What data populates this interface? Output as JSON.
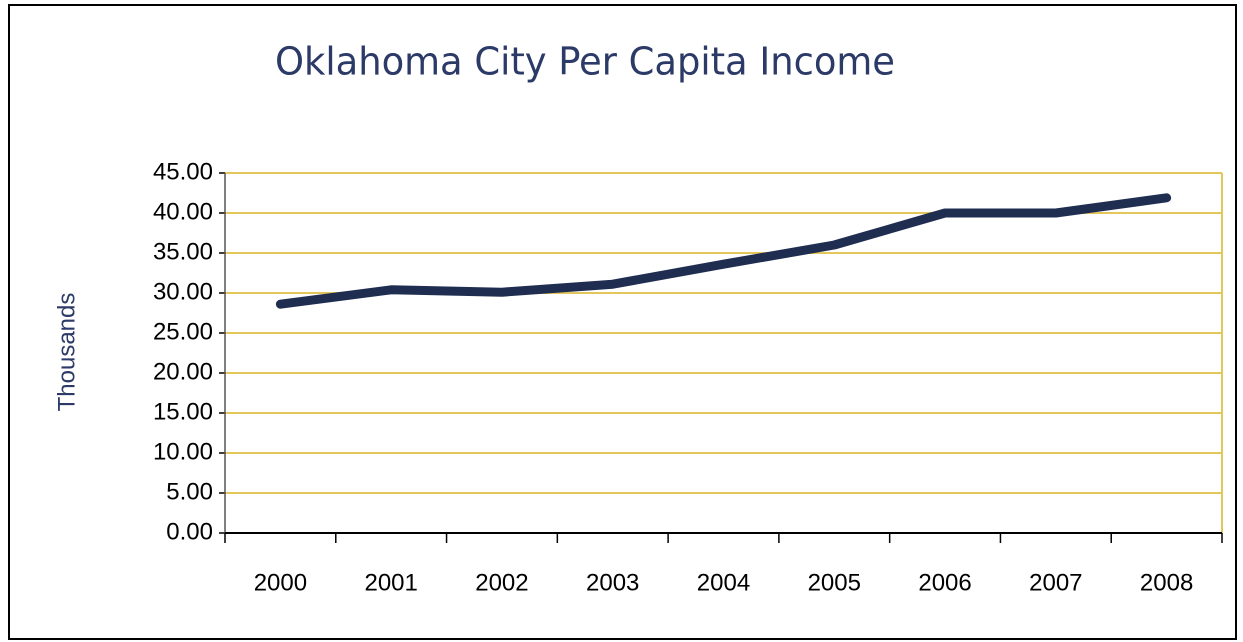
{
  "chart_data": {
    "type": "line",
    "title": "Oklahoma City Per Capita Income",
    "y_label": "Thousands",
    "categories": [
      "2000",
      "2001",
      "2002",
      "2003",
      "2004",
      "2005",
      "2006",
      "2007",
      "2008"
    ],
    "series": [
      {
        "name": "Per Capita Income",
        "color": "#1f2d50",
        "values": [
          28.6,
          30.4,
          30.1,
          31.1,
          33.6,
          36.0,
          40.0,
          40.0,
          41.9
        ]
      }
    ],
    "ylim": [
      0,
      45
    ],
    "yticks": [
      {
        "value": 0,
        "label": "0.00"
      },
      {
        "value": 5,
        "label": "5.00"
      },
      {
        "value": 10,
        "label": "10.00"
      },
      {
        "value": 15,
        "label": "15.00"
      },
      {
        "value": 20,
        "label": "20.00"
      },
      {
        "value": 25,
        "label": "25.00"
      },
      {
        "value": 30,
        "label": "30.00"
      },
      {
        "value": 35,
        "label": "35.00"
      },
      {
        "value": 40,
        "label": "40.00"
      },
      {
        "value": 45,
        "label": "45.00"
      }
    ],
    "grid": true,
    "grid_color": "#e3c75a"
  }
}
